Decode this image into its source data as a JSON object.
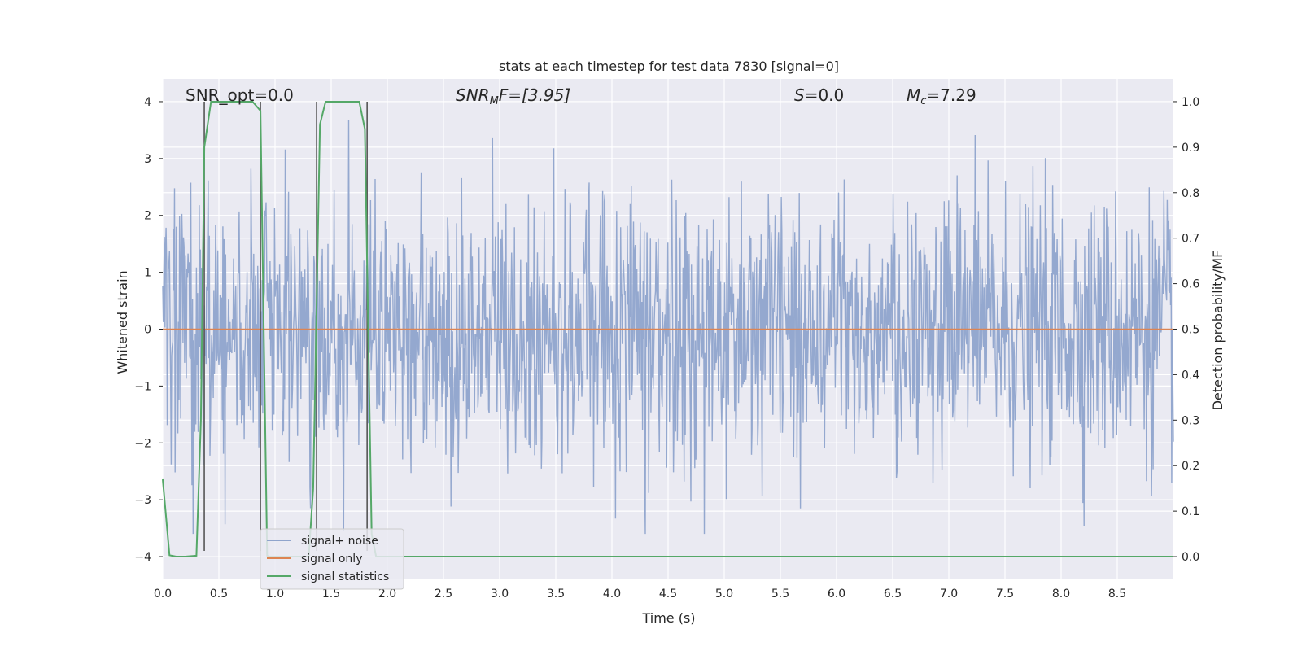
{
  "chart_data": {
    "type": "line",
    "title": "stats at each timestep for test data 7830 [signal=0]",
    "xlabel": "Time (s)",
    "ylabel": "Whitened strain",
    "y2label": "Detection probability/MF",
    "xlim": [
      0,
      9
    ],
    "ylim": [
      -4.4,
      4.4
    ],
    "y2lim": [
      -0.05,
      1.05
    ],
    "xticks": [
      "0.0",
      "0.5",
      "1.0",
      "1.5",
      "2.0",
      "2.5",
      "3.0",
      "3.5",
      "4.0",
      "4.5",
      "5.0",
      "5.5",
      "6.0",
      "6.5",
      "7.0",
      "7.5",
      "8.0",
      "8.5"
    ],
    "yticks": [
      "4",
      "3",
      "2",
      "1",
      "0",
      "−1",
      "−2",
      "−3",
      "−4"
    ],
    "y2ticks": [
      "1.0",
      "0.9",
      "0.8",
      "0.7",
      "0.6",
      "0.5",
      "0.4",
      "0.3",
      "0.2",
      "0.1",
      "0.0"
    ],
    "grid": true,
    "annotations": {
      "snr_opt": "SNR_opt=0.0",
      "snr_mf_base": "SNR",
      "snr_mf_sub": "M",
      "snr_mf_rest": "F=[3.95]",
      "s_sym": "S",
      "s_val": "=0.0",
      "mc_sym": "M",
      "mc_sub": "c",
      "mc_val": "=7.29"
    },
    "legend": {
      "position": "lower-left",
      "entries": [
        "signal+ noise",
        "signal only",
        "signal statistics"
      ]
    },
    "colors": {
      "noise": "#8fa4cc",
      "signal_only": "#dd8452",
      "statistics": "#55a868",
      "vlines": "#555555",
      "background": "#eaeaf2"
    },
    "series": [
      {
        "name": "signal+ noise",
        "axis": "left",
        "description_values": "whitened strain noise, amplitude ~N(0,1), range approx -3.5..4.0",
        "n_samples": 1800,
        "seed": 7830
      },
      {
        "name": "signal only",
        "axis": "left",
        "x": [
          0,
          9
        ],
        "y": [
          0,
          0
        ]
      },
      {
        "name": "signal statistics",
        "axis": "right",
        "x": [
          0.0,
          0.06,
          0.12,
          0.2,
          0.3,
          0.34,
          0.37,
          0.43,
          0.55,
          0.65,
          0.75,
          0.8,
          0.87,
          0.93,
          0.95,
          1.0,
          1.3,
          1.34,
          1.4,
          1.45,
          1.55,
          1.65,
          1.75,
          1.8,
          1.86,
          1.9,
          2.0,
          9.0
        ],
        "y": [
          0.17,
          0.003,
          0.0,
          0.0,
          0.002,
          0.3,
          0.9,
          1.0,
          1.0,
          1.0,
          1.0,
          1.0,
          0.98,
          0.002,
          0.0,
          0.0,
          0.0,
          0.15,
          0.95,
          1.0,
          1.0,
          1.0,
          1.0,
          0.94,
          0.05,
          0.0,
          0.0,
          0.0
        ]
      }
    ],
    "vlines": [
      0.37,
      0.87,
      1.37,
      1.82
    ]
  }
}
